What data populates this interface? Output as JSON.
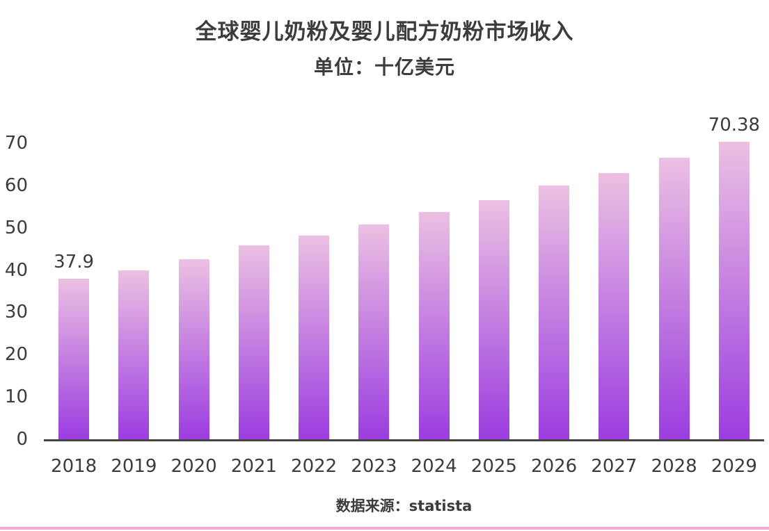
{
  "title": {
    "line1": "全球婴儿奶粉及婴儿配方奶粉市场收入",
    "line2": "单位：十亿美元"
  },
  "source": "数据来源：statista",
  "colors": {
    "bar_gradient_top": "#ecc0e2",
    "bar_gradient_bottom": "#9b3de0",
    "text": "#3b3b40",
    "axis_line": "#454545",
    "accent_line": "#f4a9d1",
    "background": "#ffffff"
  },
  "chart_data": {
    "type": "bar",
    "title": "全球婴儿奶粉及婴儿配方奶粉市场收入",
    "subtitle": "单位：十亿美元",
    "xlabel": "",
    "ylabel": "",
    "categories": [
      "2018",
      "2019",
      "2020",
      "2021",
      "2022",
      "2023",
      "2024",
      "2025",
      "2026",
      "2027",
      "2028",
      "2029"
    ],
    "values": [
      37.9,
      39.9,
      42.6,
      45.9,
      48.2,
      50.7,
      53.7,
      56.6,
      59.9,
      62.9,
      66.5,
      70.38
    ],
    "yticks": [
      0,
      10,
      20,
      30,
      40,
      50,
      60,
      70
    ],
    "ylim": [
      0,
      70
    ],
    "grid": false,
    "legend": false,
    "annotations": [
      {
        "index": 0,
        "text": "37.9"
      },
      {
        "index": 11,
        "text": "70.38"
      }
    ],
    "source": "数据来源：statista"
  }
}
